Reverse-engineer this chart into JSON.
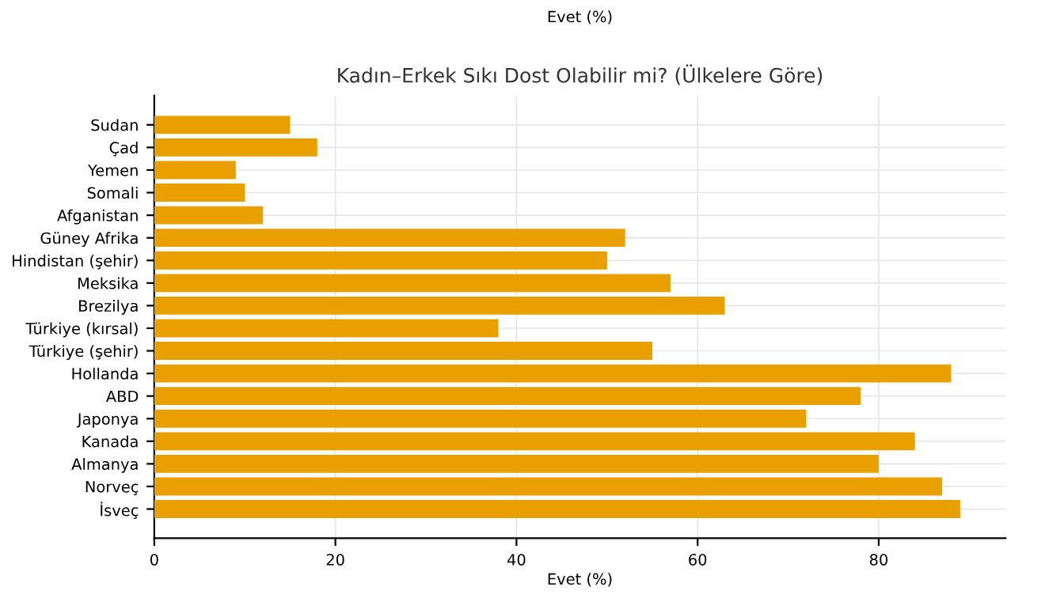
{
  "chart_data": {
    "type": "bar",
    "orientation": "horizontal",
    "title": "Kadın–Erkek Sıkı Dost Olabilir mi? (Ülkelere Göre)",
    "xlabel": "Evet (%)",
    "annotations": [
      "Evet (%)"
    ],
    "categories": [
      "Sudan",
      "Çad",
      "Yemen",
      "Somali",
      "Afganistan",
      "Güney Afrika",
      "Hindistan (şehir)",
      "Meksika",
      "Brezilya",
      "Türkiye (kırsal)",
      "Türkiye (şehir)",
      "Hollanda",
      "ABD",
      "Japonya",
      "Kanada",
      "Almanya",
      "Norveç",
      "İsveç"
    ],
    "values": [
      15,
      18,
      9,
      10,
      12,
      52,
      50,
      57,
      63,
      38,
      55,
      88,
      78,
      72,
      84,
      80,
      87,
      89
    ],
    "color": "#e8a000",
    "xlim": [
      0,
      94
    ],
    "xticks": [
      0,
      20,
      40,
      60,
      80
    ],
    "grid": true
  }
}
